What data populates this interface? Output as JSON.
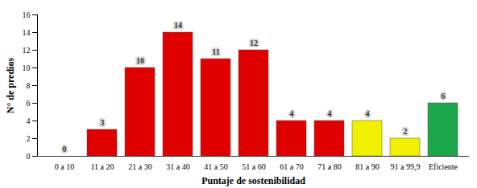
{
  "chart_data": {
    "type": "bar",
    "categories": [
      "0 a 10",
      "11 a 20",
      "21 a 30",
      "31 a 40",
      "41 a 50",
      "51 a 60",
      "61 a 70",
      "71 a 80",
      "81 a 90",
      "91 a 99,9",
      "Eficiente"
    ],
    "values": [
      0,
      3,
      10,
      14,
      11,
      12,
      4,
      4,
      4,
      2,
      6
    ],
    "colors": [
      "#e00000",
      "#e00000",
      "#e00000",
      "#e00000",
      "#e00000",
      "#e00000",
      "#e00000",
      "#e00000",
      "#f0f000",
      "#f0f000",
      "#1aa64a"
    ],
    "x_label": "Puntaje de sostenibilidad",
    "y_label": "N° de predios",
    "ylim": [
      0,
      16
    ],
    "yticks": [
      0,
      2,
      4,
      6,
      8,
      10,
      12,
      14,
      16
    ],
    "grid": false,
    "data_labels": true
  }
}
